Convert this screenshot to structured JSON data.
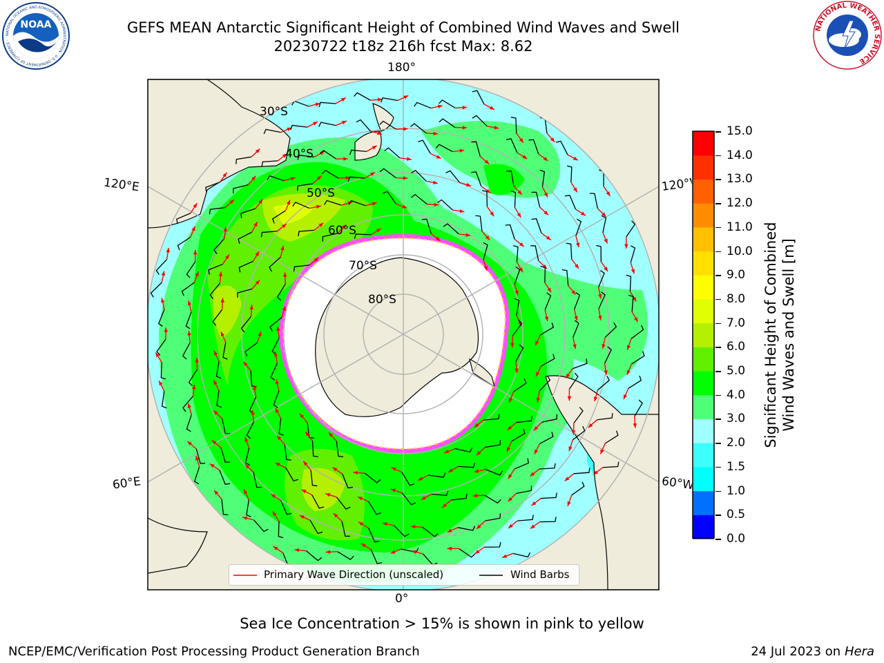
{
  "header": {
    "title_line1": "GEFS MEAN Antarctic Significant Height of Combined Wind Waves and Swell",
    "title_line2": "20230722 t18z 216h fcst   Max: 8.62"
  },
  "noaa_logo": {
    "text": "NOAA",
    "ring_text": "NATIONAL OCEANIC AND ATMOSPHERIC ADMINISTRATION · U.S. DEPARTMENT OF COMMERCE ·"
  },
  "nws_logo": {
    "ring_text": "NATIONAL WEATHER SERVICE"
  },
  "map": {
    "lon_labels": {
      "top": "180°",
      "bottom": "0°",
      "left_upper": "120°E",
      "left_lower": "60°E",
      "right_upper": "120°W",
      "right_lower": "60°W"
    },
    "lat_labels": [
      "30°S",
      "40°S",
      "50°S",
      "60°S",
      "70°S",
      "80°S"
    ]
  },
  "colorbar": {
    "title": "Significant Height of Combined Wind Waves and Swell [m]",
    "title_line1": "Significant Height of Combined",
    "title_line2": "Wind Waves and Swell [m]",
    "ticks": [
      "15.0",
      "14.0",
      "13.0",
      "12.0",
      "11.0",
      "10.0",
      "9.0",
      "8.0",
      "7.0",
      "6.0",
      "5.0",
      "4.0",
      "3.0",
      "2.0",
      "1.5",
      "1.0",
      "0.5",
      "0.0"
    ],
    "colors_bottom_to_top": [
      "#0000ff",
      "#0070ff",
      "#00ffff",
      "#3cffff",
      "#a0ffff",
      "#50ff78",
      "#00ff00",
      "#60f000",
      "#b4f000",
      "#e0ff00",
      "#ffff00",
      "#ffe000",
      "#ffc000",
      "#ff8c00",
      "#ff6000",
      "#ff3000",
      "#ff0000"
    ]
  },
  "legend": {
    "primary_wave": "Primary Wave Direction (unscaled)",
    "wind_barbs": "Wind Barbs",
    "arrow_color": "#ff0000",
    "barb_color": "#000000"
  },
  "caption": "Sea Ice Concentration > 15% is shown in pink to yellow",
  "footer": {
    "left": "NCEP/EMC/Verification Post Processing Product Generation Branch",
    "date": "24 Jul 2023 on ",
    "host": "Hera"
  }
}
